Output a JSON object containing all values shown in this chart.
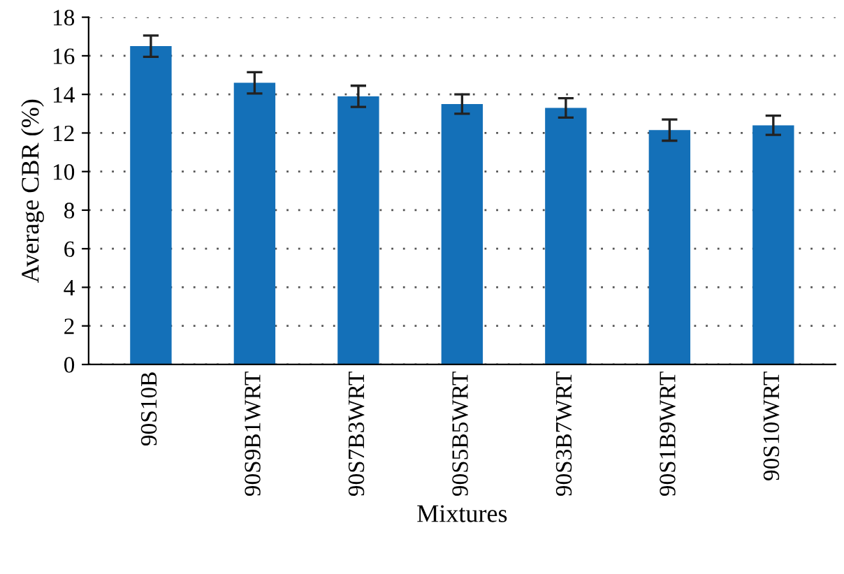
{
  "chart_data": {
    "type": "bar",
    "xlabel": "Mixtures",
    "ylabel": "Average CBR (%)",
    "categories": [
      "90S10B",
      "90S9B1WRT",
      "90S7B3WRT",
      "90S5B5WRT",
      "90S3B7WRT",
      "90S1B9WRT",
      "90S10WRT"
    ],
    "values": [
      16.5,
      14.6,
      13.9,
      13.5,
      13.3,
      12.15,
      12.4
    ],
    "errors": [
      0.55,
      0.55,
      0.55,
      0.5,
      0.5,
      0.55,
      0.5
    ],
    "color": "#1470b8",
    "ylim": [
      0,
      18
    ],
    "yticks": [
      0,
      2,
      4,
      6,
      8,
      10,
      12,
      14,
      16,
      18
    ],
    "grid": "y"
  }
}
